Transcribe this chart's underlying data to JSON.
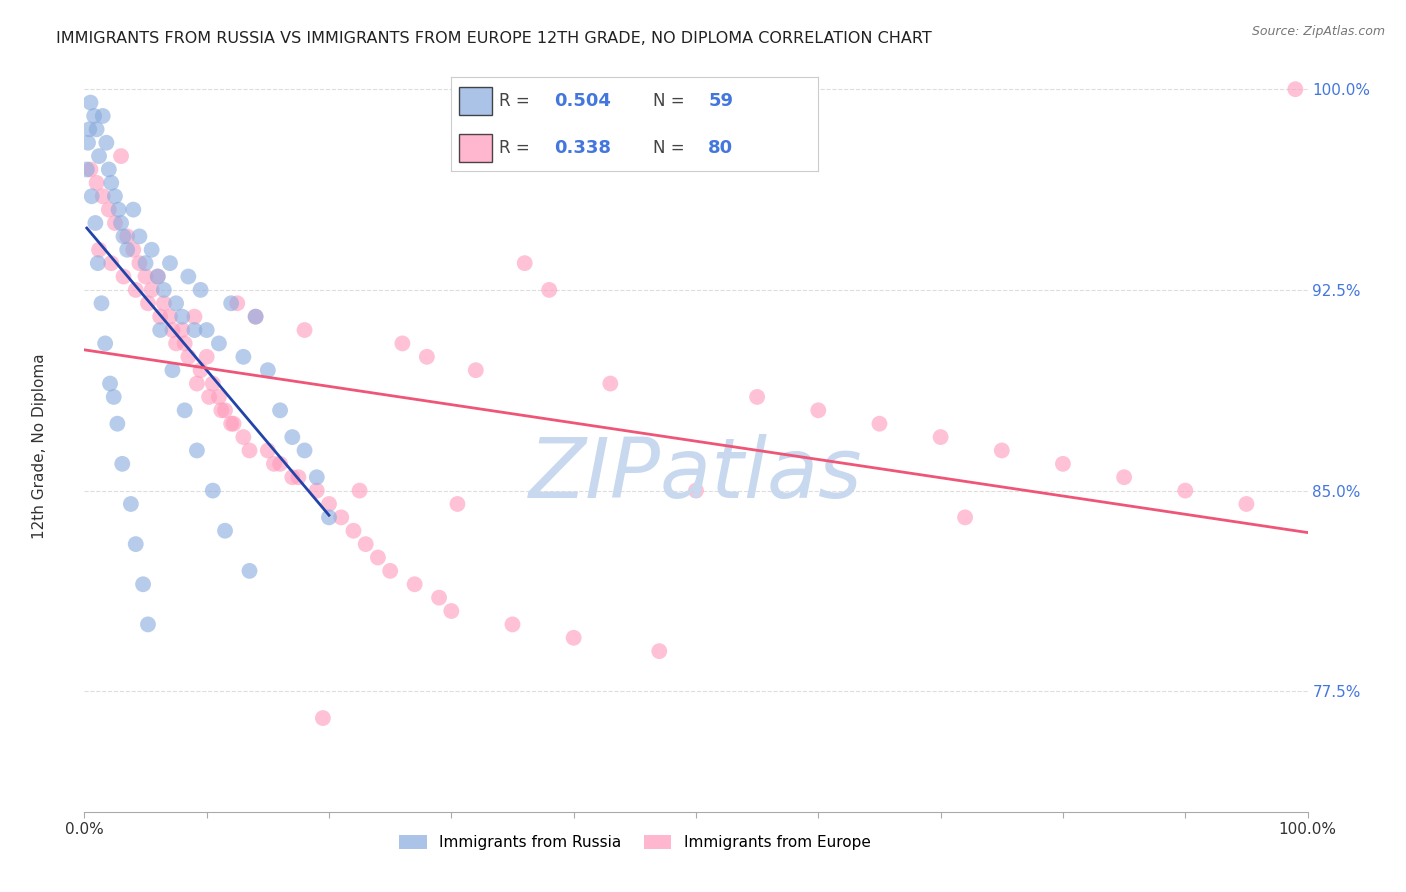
{
  "title": "IMMIGRANTS FROM RUSSIA VS IMMIGRANTS FROM EUROPE 12TH GRADE, NO DIPLOMA CORRELATION CHART",
  "source": "Source: ZipAtlas.com",
  "ylabel": "12th Grade, No Diploma",
  "legend1_label": "Immigrants from Russia",
  "legend2_label": "Immigrants from Europe",
  "R_russia": 0.504,
  "N_russia": 59,
  "R_europe": 0.338,
  "N_europe": 80,
  "color_russia": "#88AADD",
  "color_europe": "#FF99BB",
  "line_color_russia": "#2244AA",
  "line_color_europe": "#EE5577",
  "watermark_color": "#C8D8EE",
  "ytick_color": "#4477DD",
  "xmin": 0,
  "xmax": 100,
  "ymin": 73,
  "ymax": 101,
  "yticks": [
    77.5,
    85.0,
    92.5,
    100.0
  ],
  "russia_x": [
    0.3,
    0.5,
    0.8,
    1.0,
    1.2,
    1.5,
    1.8,
    2.0,
    2.2,
    2.5,
    2.8,
    3.0,
    3.2,
    3.5,
    4.0,
    4.5,
    5.0,
    5.5,
    6.0,
    6.5,
    7.0,
    7.5,
    8.0,
    8.5,
    9.0,
    9.5,
    10.0,
    11.0,
    12.0,
    13.0,
    14.0,
    15.0,
    16.0,
    17.0,
    18.0,
    19.0,
    20.0,
    0.2,
    0.4,
    0.6,
    0.9,
    1.1,
    1.4,
    1.7,
    2.1,
    2.4,
    2.7,
    3.1,
    3.8,
    4.2,
    4.8,
    5.2,
    6.2,
    7.2,
    8.2,
    9.2,
    10.5,
    11.5,
    13.5
  ],
  "russia_y": [
    98.0,
    99.5,
    99.0,
    98.5,
    97.5,
    99.0,
    98.0,
    97.0,
    96.5,
    96.0,
    95.5,
    95.0,
    94.5,
    94.0,
    95.5,
    94.5,
    93.5,
    94.0,
    93.0,
    92.5,
    93.5,
    92.0,
    91.5,
    93.0,
    91.0,
    92.5,
    91.0,
    90.5,
    92.0,
    90.0,
    91.5,
    89.5,
    88.0,
    87.0,
    86.5,
    85.5,
    84.0,
    97.0,
    98.5,
    96.0,
    95.0,
    93.5,
    92.0,
    90.5,
    89.0,
    88.5,
    87.5,
    86.0,
    84.5,
    83.0,
    81.5,
    80.0,
    91.0,
    89.5,
    88.0,
    86.5,
    85.0,
    83.5,
    82.0
  ],
  "europe_x": [
    0.5,
    1.0,
    1.5,
    2.0,
    2.5,
    3.0,
    3.5,
    4.0,
    4.5,
    5.0,
    5.5,
    6.0,
    6.5,
    7.0,
    7.5,
    8.0,
    8.5,
    9.0,
    9.5,
    10.0,
    10.5,
    11.0,
    11.5,
    12.0,
    12.5,
    13.0,
    14.0,
    15.0,
    16.0,
    17.0,
    18.0,
    19.0,
    20.0,
    21.0,
    22.0,
    23.0,
    24.0,
    25.0,
    26.0,
    27.0,
    28.0,
    29.0,
    30.0,
    32.0,
    35.0,
    38.0,
    40.0,
    43.0,
    47.0,
    55.0,
    60.0,
    65.0,
    70.0,
    75.0,
    80.0,
    85.0,
    90.0,
    95.0,
    99.0,
    1.2,
    2.2,
    3.2,
    4.2,
    5.2,
    6.2,
    7.2,
    8.2,
    9.2,
    10.2,
    11.2,
    12.2,
    13.5,
    15.5,
    17.5,
    19.5,
    22.5,
    30.5,
    36.0,
    50.0,
    72.0
  ],
  "europe_y": [
    97.0,
    96.5,
    96.0,
    95.5,
    95.0,
    97.5,
    94.5,
    94.0,
    93.5,
    93.0,
    92.5,
    93.0,
    92.0,
    91.5,
    90.5,
    91.0,
    90.0,
    91.5,
    89.5,
    90.0,
    89.0,
    88.5,
    88.0,
    87.5,
    92.0,
    87.0,
    91.5,
    86.5,
    86.0,
    85.5,
    91.0,
    85.0,
    84.5,
    84.0,
    83.5,
    83.0,
    82.5,
    82.0,
    90.5,
    81.5,
    90.0,
    81.0,
    80.5,
    89.5,
    80.0,
    92.5,
    79.5,
    89.0,
    79.0,
    88.5,
    88.0,
    87.5,
    87.0,
    86.5,
    86.0,
    85.5,
    85.0,
    84.5,
    100.0,
    94.0,
    93.5,
    93.0,
    92.5,
    92.0,
    91.5,
    91.0,
    90.5,
    89.0,
    88.5,
    88.0,
    87.5,
    86.5,
    86.0,
    85.5,
    76.5,
    85.0,
    84.5,
    93.5,
    85.0,
    84.0
  ]
}
